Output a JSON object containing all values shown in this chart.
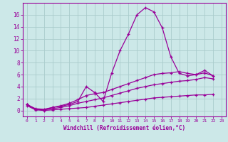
{
  "background_color": "#cce8e8",
  "grid_color": "#aacccc",
  "line_color": "#990099",
  "xlabel": "Windchill (Refroidissement éolien,°C)",
  "xlim": [
    -0.5,
    23.5
  ],
  "ylim": [
    -1.0,
    18.0
  ],
  "yticks": [
    0,
    2,
    4,
    6,
    8,
    10,
    12,
    14,
    16
  ],
  "xticks": [
    0,
    1,
    2,
    3,
    4,
    5,
    6,
    7,
    8,
    9,
    10,
    11,
    12,
    13,
    14,
    15,
    16,
    17,
    18,
    19,
    20,
    21,
    22,
    23
  ],
  "series": [
    [
      1.0,
      0.2,
      0.1,
      0.5,
      0.7,
      1.0,
      1.5,
      4.0,
      3.0,
      1.5,
      6.2,
      10.0,
      12.8,
      16.0,
      17.2,
      16.5,
      13.8,
      9.0,
      6.2,
      5.8,
      6.0,
      6.7,
      5.8
    ],
    [
      1.0,
      0.3,
      0.2,
      0.5,
      0.8,
      1.2,
      1.8,
      2.5,
      2.8,
      3.0,
      3.5,
      4.0,
      4.5,
      5.0,
      5.5,
      6.0,
      6.2,
      6.3,
      6.5,
      6.2,
      6.0,
      6.3,
      5.8
    ],
    [
      1.0,
      0.2,
      0.1,
      0.3,
      0.5,
      0.8,
      1.2,
      1.5,
      1.8,
      2.1,
      2.5,
      2.9,
      3.3,
      3.7,
      4.0,
      4.3,
      4.5,
      4.7,
      4.9,
      5.0,
      5.2,
      5.5,
      5.3
    ],
    [
      0.8,
      0.1,
      0.0,
      0.1,
      0.2,
      0.3,
      0.4,
      0.5,
      0.7,
      0.9,
      1.1,
      1.3,
      1.5,
      1.7,
      1.9,
      2.1,
      2.2,
      2.3,
      2.4,
      2.5,
      2.6,
      2.6,
      2.7
    ]
  ]
}
